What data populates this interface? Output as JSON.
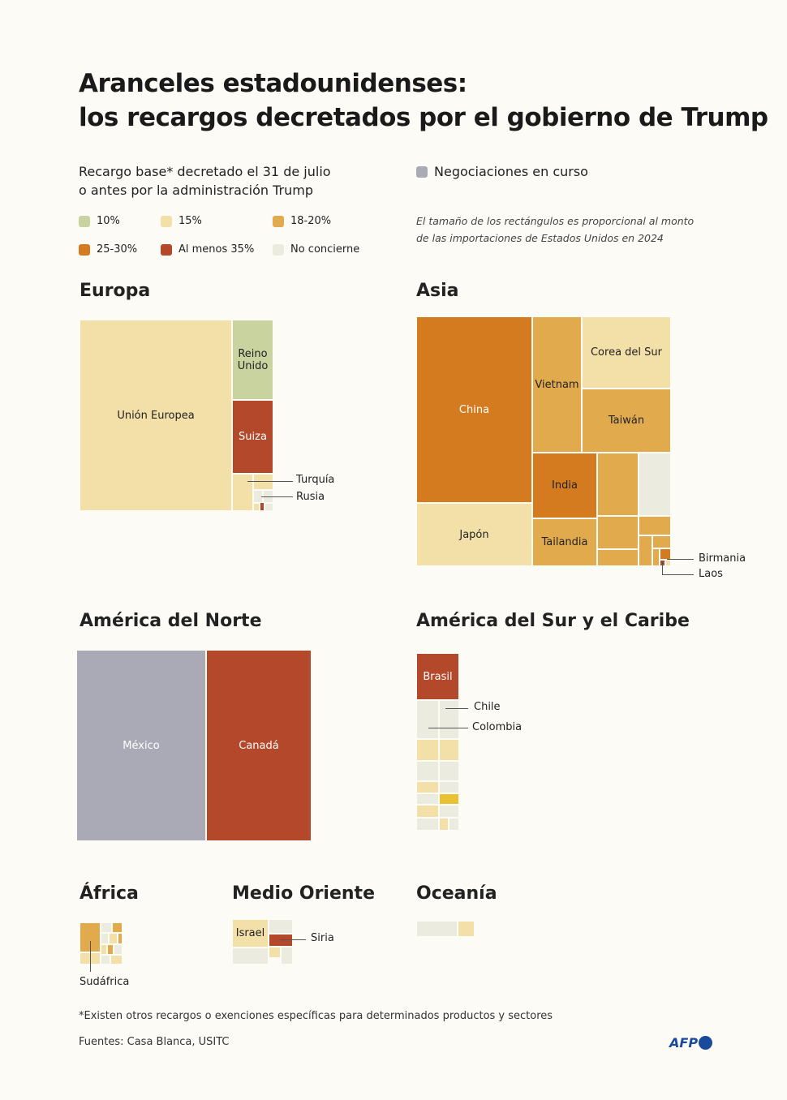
{
  "title": [
    "Aranceles estadounidenses:",
    "los recargos decretados por el gobierno de Trump"
  ],
  "legend": {
    "heading": [
      "Recargo base* decretado el 31 de julio",
      "o antes por la administración Trump"
    ],
    "items": [
      {
        "key": "c10",
        "label": "10%",
        "color": "#c9d3a0"
      },
      {
        "key": "c15",
        "label": "15%",
        "color": "#f3dfa8"
      },
      {
        "key": "c18",
        "label": "18-20%",
        "color": "#e1aa4c"
      },
      {
        "key": "c25",
        "label": "25-30%",
        "color": "#d37b1e"
      },
      {
        "key": "c35",
        "label": "Al menos 35%",
        "color": "#b4482a"
      },
      {
        "key": "none",
        "label": "No concierne",
        "color": "#ebebdf"
      }
    ],
    "negotiation": {
      "label": "Negociaciones en curso",
      "color": "#aaaab6"
    },
    "extra_color": "#e8c232",
    "note": [
      "El tamaño de los rectángulos es proporcional al monto",
      "de las importaciones de Estados Unidos en 2024"
    ]
  },
  "regions": {
    "europa": {
      "name": "Europa",
      "labels": {
        "eu": "Unión Europea",
        "uk": "Reino Unido",
        "suiza": "Suiza",
        "turquia": "Turquía",
        "rusia": "Rusia"
      }
    },
    "asia": {
      "name": "Asia",
      "labels": {
        "china": "China",
        "japon": "Japón",
        "vietnam": "Vietnam",
        "corea": "Corea del Sur",
        "taiwan": "Taiwán",
        "india": "India",
        "tailandia": "Tailandia",
        "birmania": "Birmania",
        "laos": "Laos"
      }
    },
    "norte": {
      "name": "América del Norte",
      "labels": {
        "mexico": "México",
        "canada": "Canadá"
      }
    },
    "sur": {
      "name": "América del Sur y el Caribe",
      "labels": {
        "brasil": "Brasil",
        "chile": "Chile",
        "colombia": "Colombia"
      }
    },
    "africa": {
      "name": "África",
      "labels": {
        "sudafrica": "Sudáfrica"
      }
    },
    "medio": {
      "name": "Medio Oriente",
      "labels": {
        "israel": "Israel",
        "siria": "Siria"
      }
    },
    "oceania": {
      "name": "Oceanía"
    }
  },
  "footnote": "*Existen otros recargos o exenciones específicas para determinados productos y sectores",
  "sources": "Fuentes: Casa Blanca, USITC",
  "logo": "AFP"
}
